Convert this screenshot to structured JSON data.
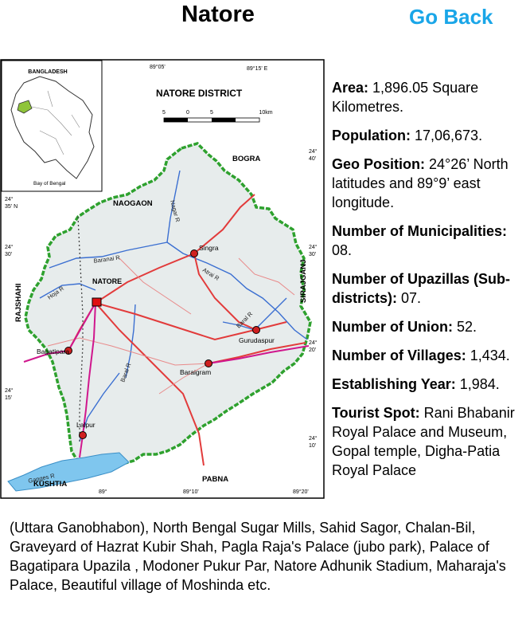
{
  "header": {
    "title": "Natore",
    "go_back": "Go Back"
  },
  "map": {
    "district_title": "NATORE DISTRICT",
    "inset_country": "BANGLADESH",
    "inset_bay": "Bay of Bengal",
    "scale": [
      "5",
      "0",
      "5",
      "10km"
    ],
    "coords": {
      "top1": "89°05'",
      "top2": "89°15' E",
      "bottom1": "89°",
      "bottom2": "89°10'",
      "bottom3": "89°20'",
      "r1a": "24°",
      "r1b": "40'",
      "l1a": "24°",
      "l1b": "35' N",
      "l2a": "24°",
      "l2b": "30'",
      "r2a": "24°",
      "r2b": "30'",
      "r3a": "24°",
      "r3b": "20'",
      "l3a": "24°",
      "l3b": "15'",
      "r4a": "24°",
      "r4b": "10'"
    },
    "neighbors": {
      "bogra": "BOGRA",
      "naogaon": "NAOGAON",
      "rajshahi": "RAJSHAHI",
      "sirajganj": "SIRAJGANJ",
      "pabna": "PABNA",
      "kushtia": "KUSHTIA"
    },
    "places": {
      "natore": "NATORE",
      "singra": "Singra",
      "gurudaspur": "Gurudaspur",
      "bagatipara": "Bagatipara",
      "baraigram": "Baraigram",
      "lalpur": "Lalpur"
    },
    "rivers": {
      "nagar": "Nagar R",
      "baranai": "Baranai R",
      "atrai": "Atrai R",
      "hoja": "Hoja R",
      "boral1": "Baral R",
      "boral2": "Baral R",
      "ganges": "Ganges R"
    }
  },
  "info": {
    "area": {
      "label": "Area:",
      "value": " 1,896.05 Square Kilometres."
    },
    "population": {
      "label": "Population:",
      "value": " 17,06,673."
    },
    "geo": {
      "label": "Geo Position:",
      "value": " 24°26’ North latitudes and 89°9’ east longitude."
    },
    "municipalities": {
      "label": "Number of Municipalities:",
      "value": " 08."
    },
    "upazillas": {
      "label": "Number of Upazillas (Sub-districts):",
      "value": " 07."
    },
    "union": {
      "label": "Number of Union:",
      "value": " 52."
    },
    "villages": {
      "label": "Number of Villages:",
      "value": " 1,434."
    },
    "establishing": {
      "label": "Establishing Year:",
      "value": " 1,984."
    },
    "tourist": {
      "label": "Tourist Spot:",
      "value": " Rani Bhabanir Royal Palace and Museum, Gopal temple, Digha-Patia Royal Palace",
      "continued": "(Uttara Ganobhabon), North Bengal Sugar Mills, Sahid Sagor, Chalan-Bil, Graveyard of Hazrat Kubir Shah, Pagla Raja's Palace (jubo park), Palace of Bagatipara Upazila , Modoner Pukur Par, Natore Adhunik Stadium, Maharaja's Palace, Beautiful village of Moshinda  etc."
    }
  }
}
